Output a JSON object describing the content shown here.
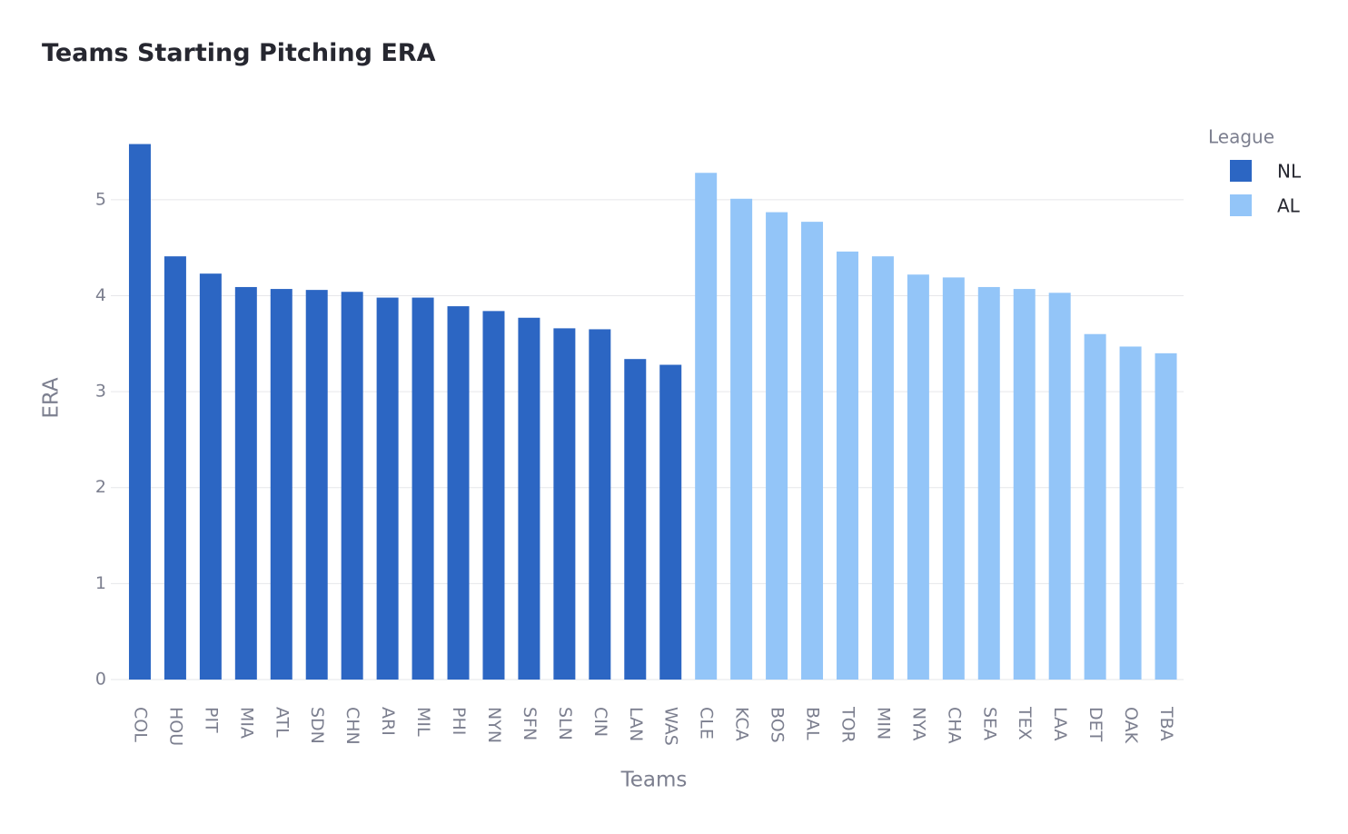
{
  "chart_data": {
    "type": "bar",
    "title": "Teams Starting Pitching ERA",
    "x_label": "Teams",
    "y_label": "ERA",
    "legend_title": "League",
    "legend_position": "right",
    "grid": true,
    "categories": [
      "COL",
      "HOU",
      "PIT",
      "MIA",
      "ATL",
      "SDN",
      "CHN",
      "ARI",
      "MIL",
      "PHI",
      "NYN",
      "SFN",
      "SLN",
      "CIN",
      "LAN",
      "WAS",
      "CLE",
      "KCA",
      "BOS",
      "BAL",
      "TOR",
      "MIN",
      "NYA",
      "CHA",
      "SEA",
      "TEX",
      "LAA",
      "DET",
      "OAK",
      "TBA"
    ],
    "series": [
      {
        "name": "NL",
        "color": "#2c66c3",
        "values": [
          5.58,
          4.41,
          4.23,
          4.09,
          4.07,
          4.06,
          4.04,
          3.98,
          3.98,
          3.89,
          3.84,
          3.77,
          3.66,
          3.65,
          3.34,
          3.28,
          null,
          null,
          null,
          null,
          null,
          null,
          null,
          null,
          null,
          null,
          null,
          null,
          null,
          null
        ]
      },
      {
        "name": "AL",
        "color": "#93c5f8",
        "values": [
          null,
          null,
          null,
          null,
          null,
          null,
          null,
          null,
          null,
          null,
          null,
          null,
          null,
          null,
          null,
          null,
          5.28,
          5.01,
          4.87,
          4.77,
          4.46,
          4.41,
          4.22,
          4.19,
          4.09,
          4.07,
          4.03,
          3.6,
          3.47,
          3.4
        ]
      }
    ],
    "ylim": [
      0,
      5.68
    ],
    "yticks": [
      0,
      1,
      2,
      3,
      4,
      5
    ]
  }
}
